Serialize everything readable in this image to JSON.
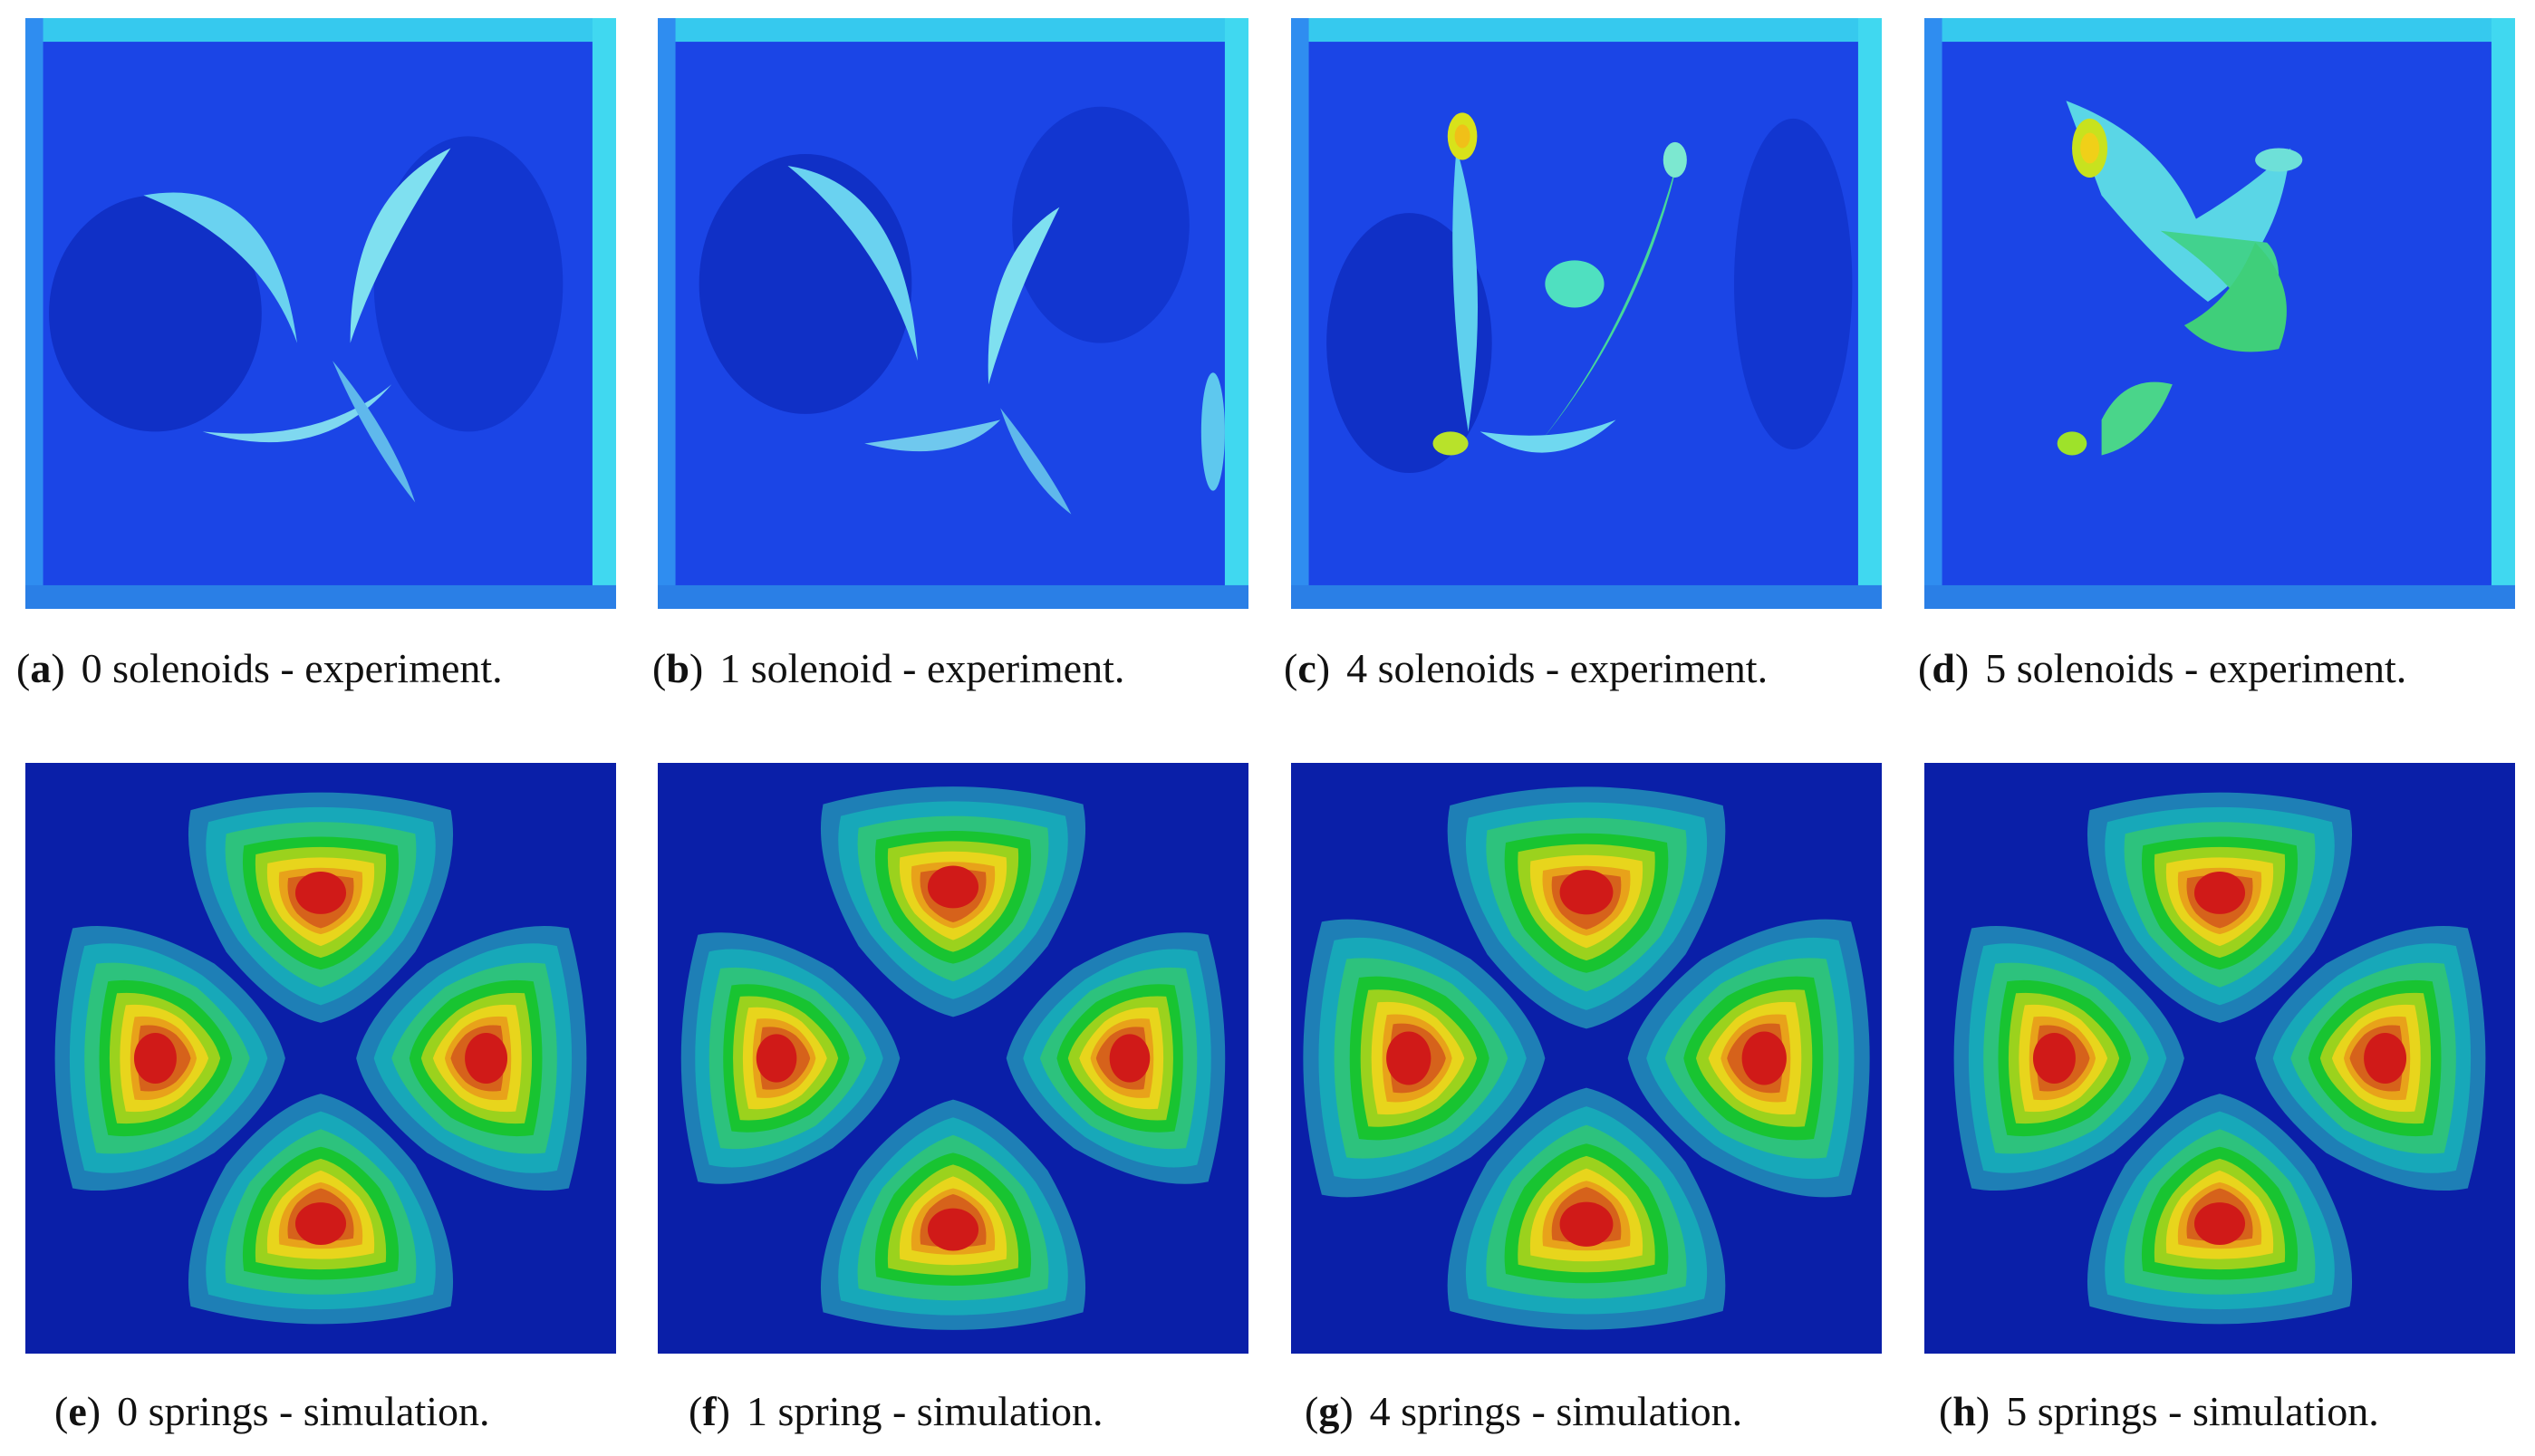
{
  "figure": {
    "experiment_panels": [
      {
        "letter": "a",
        "text": "0 solenoids - experiment."
      },
      {
        "letter": "b",
        "text": "1 solenoid - experiment."
      },
      {
        "letter": "c",
        "text": "4 solenoids - experiment."
      },
      {
        "letter": "d",
        "text": "5 solenoids - experiment."
      }
    ],
    "simulation_panels": [
      {
        "letter": "e",
        "text": "0 springs - simulation."
      },
      {
        "letter": "f",
        "text": "1 spring - simulation."
      },
      {
        "letter": "g",
        "text": "4 springs - simulation."
      },
      {
        "letter": "h",
        "text": "5 springs - simulation."
      }
    ]
  },
  "colors": {
    "background_blue": "#0a1fa8",
    "plate_blue": "#1a3fe0",
    "frame_cyan": "#39d6ef",
    "contour": [
      "#0a1fa8",
      "#1e7fb6",
      "#17a8b9",
      "#2dc27d",
      "#18c431",
      "#9bd21d",
      "#e8d51c",
      "#e8a21a",
      "#d6621b",
      "#d01a18"
    ]
  }
}
